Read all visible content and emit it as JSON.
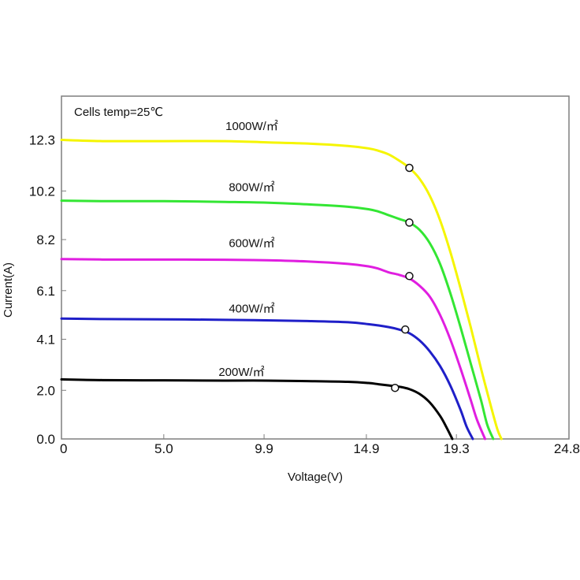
{
  "chart_data": {
    "type": "line",
    "title": "",
    "annotation": "Cells temp=25℃",
    "xlabel": "Voltage(V)",
    "ylabel": "Current(A)",
    "xlim": [
      0,
      24.8
    ],
    "ylim": [
      0,
      14.1
    ],
    "x_ticks": [
      0,
      5.0,
      9.9,
      14.9,
      19.3,
      24.8
    ],
    "x_tick_labels": [
      "0",
      "5.0",
      "9.9",
      "14.9",
      "19.3",
      "24.8"
    ],
    "y_ticks": [
      0.0,
      2.0,
      4.1,
      6.1,
      8.2,
      10.2,
      12.3
    ],
    "y_tick_labels": [
      "0.0",
      "2.0",
      "4.1",
      "6.1",
      "8.2",
      "10.2",
      "12.3"
    ],
    "grid": false,
    "series": [
      {
        "name": "1000W/㎡",
        "color": "#f5f500",
        "label_at": [
          9.3,
          12.7
        ],
        "x": [
          0,
          2,
          5,
          8,
          10,
          12,
          14,
          15,
          15.5,
          16,
          16.5,
          17,
          17.5,
          18,
          18.5,
          19,
          19.5,
          20,
          20.5,
          21.0,
          21.3,
          21.5
        ],
        "y": [
          12.3,
          12.25,
          12.25,
          12.25,
          12.2,
          12.15,
          12.05,
          11.95,
          11.85,
          11.7,
          11.45,
          11.15,
          10.7,
          10.0,
          9.0,
          7.7,
          6.2,
          4.6,
          2.9,
          1.3,
          0.4,
          0.0
        ],
        "mpp": [
          17.0,
          11.15
        ]
      },
      {
        "name": "800W/㎡",
        "color": "#33e633",
        "label_at": [
          9.3,
          10.2
        ],
        "x": [
          0,
          2,
          5,
          8,
          10,
          12,
          14,
          15,
          15.5,
          16,
          16.5,
          17,
          17.5,
          18,
          18.5,
          19,
          19.5,
          20,
          20.5,
          20.8,
          21.1
        ],
        "y": [
          9.8,
          9.78,
          9.78,
          9.75,
          9.72,
          9.65,
          9.55,
          9.45,
          9.35,
          9.2,
          9.05,
          8.9,
          8.6,
          8.05,
          7.2,
          6.0,
          4.6,
          3.1,
          1.6,
          0.6,
          0.0
        ],
        "mpp": [
          17.0,
          8.9
        ]
      },
      {
        "name": "600W/㎡",
        "color": "#e01ee0",
        "label_at": [
          9.3,
          7.9
        ],
        "x": [
          0,
          2,
          5,
          8,
          10,
          12,
          14,
          15,
          15.5,
          16,
          16.5,
          17,
          17.5,
          18,
          18.5,
          19,
          19.5,
          20,
          20.3,
          20.7
        ],
        "y": [
          7.4,
          7.38,
          7.38,
          7.37,
          7.35,
          7.3,
          7.2,
          7.1,
          7.0,
          6.85,
          6.75,
          6.6,
          6.3,
          5.85,
          5.1,
          4.1,
          2.9,
          1.6,
          0.8,
          0.0
        ],
        "mpp": [
          17.0,
          6.7
        ]
      },
      {
        "name": "400W/㎡",
        "color": "#1f1fc8",
        "label_at": [
          9.3,
          5.2
        ],
        "x": [
          0,
          2,
          5,
          8,
          10,
          12,
          14,
          15,
          16,
          16.5,
          17,
          17.5,
          18,
          18.5,
          19,
          19.5,
          19.8,
          20.1
        ],
        "y": [
          4.95,
          4.93,
          4.92,
          4.9,
          4.88,
          4.85,
          4.8,
          4.72,
          4.6,
          4.5,
          4.35,
          4.05,
          3.6,
          3.0,
          2.2,
          1.2,
          0.5,
          0.0
        ],
        "mpp": [
          16.8,
          4.5
        ]
      },
      {
        "name": "200W/㎡",
        "color": "#000000",
        "label_at": [
          8.8,
          2.6
        ],
        "x": [
          0,
          2,
          5,
          8,
          10,
          12,
          14,
          15,
          15.5,
          16,
          16.5,
          17,
          17.5,
          18,
          18.5,
          18.8,
          19.1
        ],
        "y": [
          2.45,
          2.42,
          2.41,
          2.4,
          2.4,
          2.38,
          2.35,
          2.3,
          2.25,
          2.2,
          2.15,
          2.05,
          1.85,
          1.5,
          0.95,
          0.5,
          0.0
        ],
        "mpp": [
          16.3,
          2.1
        ]
      }
    ]
  }
}
